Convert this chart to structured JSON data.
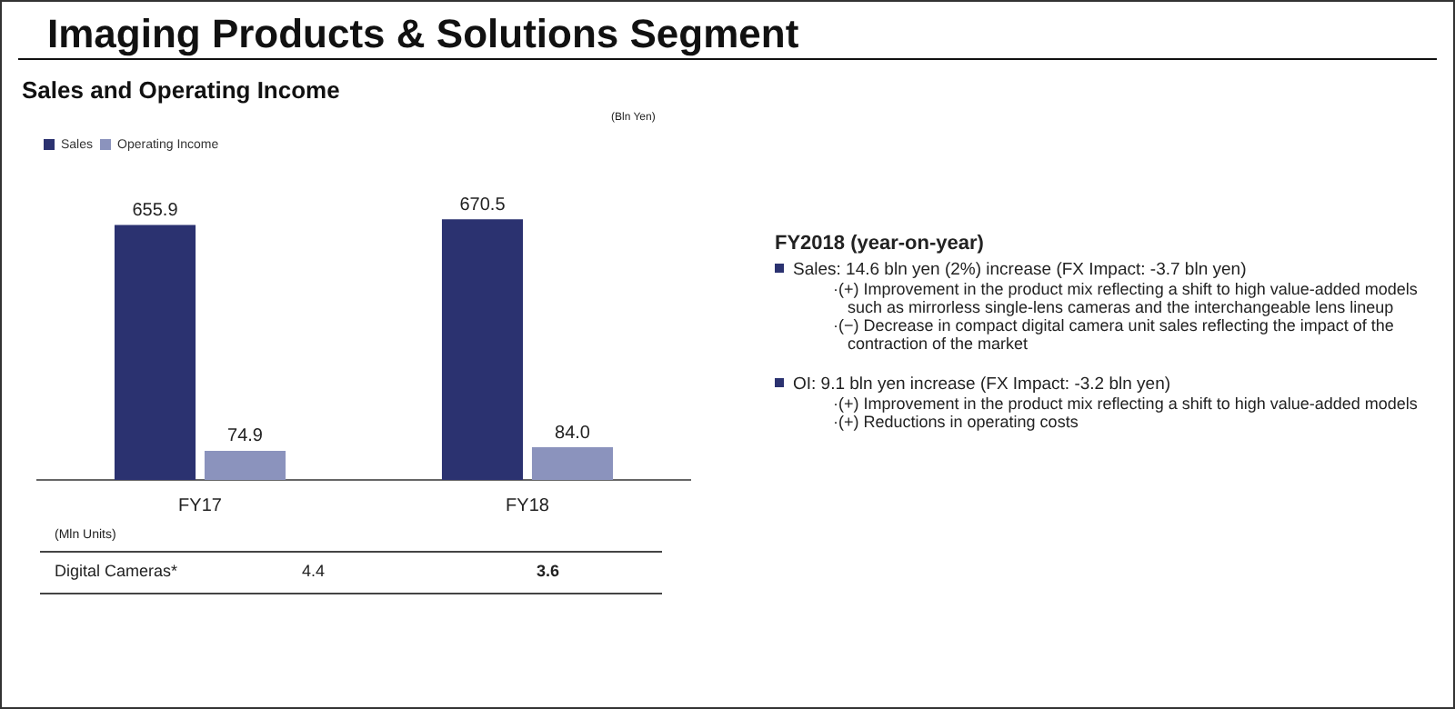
{
  "chart_data": {
    "type": "bar",
    "title": "Imaging Products & Solutions Segment",
    "subtitle": "Sales and Operating Income",
    "categories": [
      "FY17",
      "FY18"
    ],
    "series": [
      {
        "name": "Sales",
        "color": "#2b3270",
        "values": [
          655.9,
          670.5
        ],
        "value_labels": [
          "655.9",
          "670.5"
        ]
      },
      {
        "name": "Operating Income",
        "color": "#8b93bd",
        "values": [
          74.9,
          84.0
        ],
        "value_labels": [
          "74.9",
          "84.0"
        ]
      }
    ],
    "grid": false,
    "legend": "top left",
    "tick_labels": "x",
    "annotations": [
      "(Bln Yen)",
      "(Mln Units)",
      "Digital Cameras*",
      "4.4",
      "3.6",
      "FY2018 (year-on-year)",
      "Sales: 14.6 bln yen (2%) increase (FX Impact: -3.7 bln yen)",
      "·(+) Improvement in the product mix reflecting a shift to high value-added models such as mirrorless single-lens cameras and the interchangeable lens lineup",
      "·(−) Decrease in compact digital camera unit sales reflecting the impact of the contraction of the market",
      "OI: 9.1 bln yen increase (FX Impact: -3.2 bln yen)",
      "·(+) Improvement in the product mix reflecting a shift to high value-added models",
      "·(+) Reductions in operating costs"
    ]
  }
}
